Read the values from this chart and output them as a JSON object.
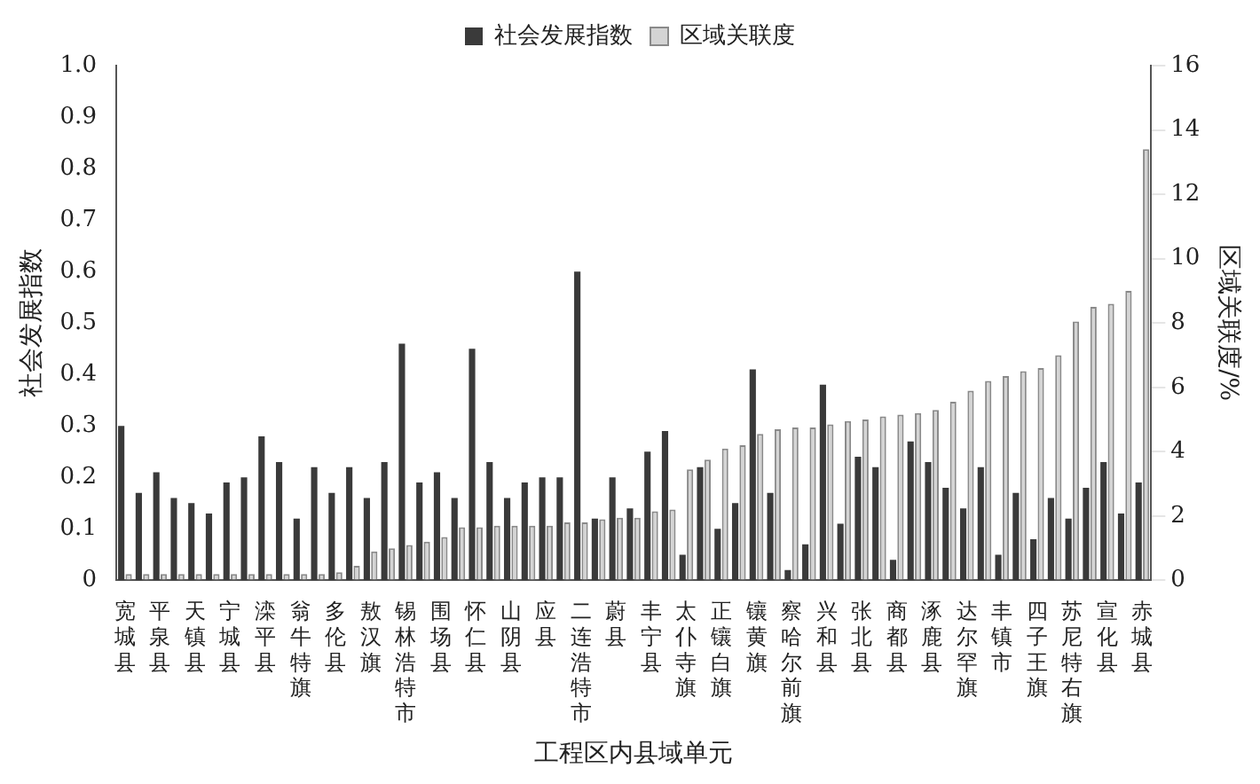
{
  "chart_data": {
    "type": "bar",
    "xlabel": "工程区内县域单元",
    "ylabel": "社会发展指数",
    "y2label": "区域关联度/%",
    "categories": [
      "宽城县",
      null,
      "平泉县",
      null,
      "天镇县",
      null,
      "宁城县",
      null,
      "滦平县",
      null,
      "翁牛特旗",
      null,
      "多伦县",
      null,
      "敖汉旗",
      null,
      "锡林浩特市",
      null,
      "围场县",
      null,
      "怀仁县",
      null,
      "山阴县",
      null,
      "应县",
      null,
      "二连浩特市",
      null,
      "蔚县",
      null,
      "丰宁县",
      null,
      "太仆寺旗",
      null,
      "正镶白旗",
      null,
      "镶黄旗",
      null,
      "察哈尔前旗",
      null,
      "兴和县",
      null,
      "张北县",
      null,
      "商都县",
      null,
      "涿鹿县",
      null,
      "达尔罕旗",
      null,
      "丰镇市",
      null,
      "四子王旗",
      null,
      "苏尼特右旗",
      null,
      "宣化县",
      null,
      "赤城县"
    ],
    "series": [
      {
        "name": "社会发展指数",
        "color": "#3a3a3a",
        "values": [
          0.3,
          0.17,
          0.21,
          0.16,
          0.15,
          0.13,
          0.19,
          0.2,
          0.28,
          0.23,
          0.12,
          0.22,
          0.17,
          0.22,
          0.16,
          0.23,
          0.46,
          0.19,
          0.21,
          0.16,
          0.45,
          0.23,
          0.16,
          0.19,
          0.2,
          0.2,
          0.6,
          0.12,
          0.2,
          0.14,
          0.25,
          0.29,
          0.05,
          0.22,
          0.1,
          0.15,
          0.41,
          0.17,
          0.02,
          0.07,
          0.38,
          0.11,
          0.24,
          0.22,
          0.04,
          0.27,
          0.23,
          0.18,
          0.14,
          0.22,
          0.05,
          0.17,
          0.08,
          0.16,
          0.12,
          0.18,
          0.23,
          0.13,
          0.19
        ]
      },
      {
        "name": "区域关联度",
        "color": "#d4d4d4",
        "axis": "y2",
        "values": [
          0.2,
          0.2,
          0.2,
          0.2,
          0.2,
          0.2,
          0.2,
          0.2,
          0.2,
          0.2,
          0.2,
          0.2,
          0.25,
          0.45,
          0.9,
          1.0,
          1.1,
          1.2,
          1.35,
          1.65,
          1.65,
          1.7,
          1.7,
          1.7,
          1.7,
          1.8,
          1.8,
          1.9,
          1.95,
          1.95,
          2.15,
          2.2,
          3.45,
          3.75,
          4.1,
          4.2,
          4.55,
          4.7,
          4.75,
          4.75,
          4.85,
          4.95,
          5.0,
          5.1,
          5.15,
          5.2,
          5.3,
          5.55,
          5.9,
          6.2,
          6.35,
          6.5,
          6.6,
          7.0,
          8.05,
          8.5,
          8.6,
          9.0,
          13.4
        ]
      }
    ],
    "ylim": [
      0,
      1
    ],
    "yticks": [
      0,
      0.1,
      0.2,
      0.3,
      0.4,
      0.5,
      0.6,
      0.7,
      0.8,
      0.9,
      {
        "value": 1,
        "label": "1.0"
      }
    ],
    "y2lim": [
      0,
      16
    ],
    "y2ticks": [
      0,
      2,
      4,
      6,
      8,
      10,
      12,
      14,
      16
    ],
    "legend": "top",
    "grid": false
  }
}
